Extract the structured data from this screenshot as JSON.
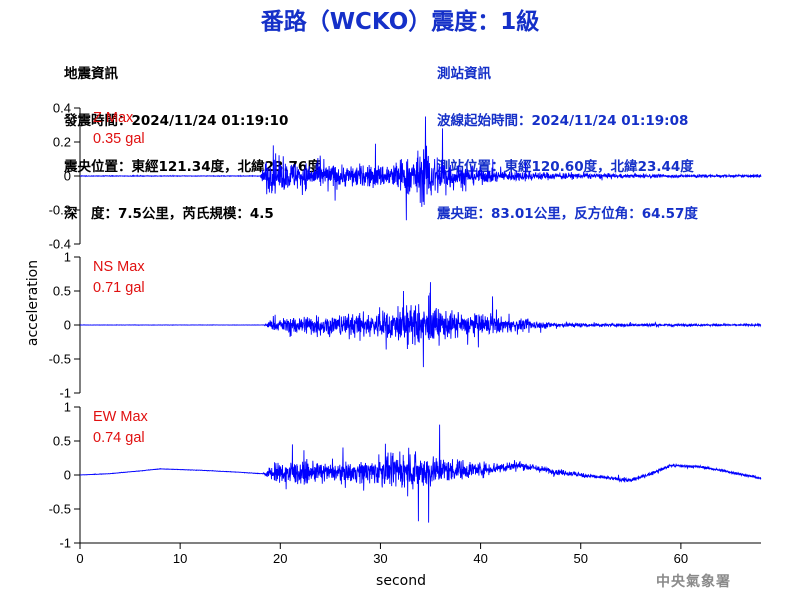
{
  "title": "番路（WCKO）震度：1級",
  "earthquake_info": {
    "heading": "地震資訊",
    "origin_time": "發震時間：2024/11/24 01:19:10",
    "epicenter": "震央位置：東經121.34度，北緯23.76度",
    "depth_magnitude": "深　度：7.5公里，芮氏規模：4.5"
  },
  "station_info": {
    "heading": "測站資訊",
    "wave_start": "波線起始時間：2024/11/24 01:19:08",
    "location": "測站位置：東經120.60度，北緯23.44度",
    "distance": "震央距：83.01公里，反方位角：64.57度"
  },
  "credit": "中央氣象署",
  "colors": {
    "trace": "#0000ff",
    "title": "#1530c8",
    "max_label": "#e01010"
  },
  "chart_data": {
    "type": "line",
    "xlabel": "second",
    "ylabel": "acceleration",
    "xlim": [
      0,
      68
    ],
    "x_ticks": [
      "0",
      "10",
      "20",
      "30",
      "40",
      "50",
      "60"
    ],
    "grid": false,
    "duration_s": 68,
    "onset_s": 18.3,
    "panels": [
      {
        "component": "Z",
        "max_label": "Z Max",
        "max_value": "0.35 gal",
        "ylim": [
          -0.4,
          0.4
        ],
        "y_ticks": [
          "0.4",
          "0.2",
          "0",
          "-0.2",
          "-0.4"
        ],
        "amplitude_envelope": [
          [
            0,
            0.003
          ],
          [
            18,
            0.003
          ],
          [
            18.5,
            0.17
          ],
          [
            22,
            0.14
          ],
          [
            26,
            0.12
          ],
          [
            30,
            0.12
          ],
          [
            33,
            0.2
          ],
          [
            34.5,
            0.3
          ],
          [
            36,
            0.2
          ],
          [
            38,
            0.11
          ],
          [
            42,
            0.06
          ],
          [
            48,
            0.035
          ],
          [
            55,
            0.02
          ],
          [
            68,
            0.012
          ]
        ],
        "peak_samples": [
          [
            19.3,
            0.18
          ],
          [
            29.5,
            0.19
          ],
          [
            34.5,
            0.35
          ],
          [
            36.2,
            0.28
          ],
          [
            32.6,
            -0.26
          ],
          [
            44.5,
            0.08
          ]
        ]
      },
      {
        "component": "NS",
        "max_label": "NS Max",
        "max_value": "0.71 gal",
        "ylim": [
          -1,
          1
        ],
        "y_ticks": [
          "1",
          "0.5",
          "0",
          "-0.5",
          "-1"
        ],
        "amplitude_envelope": [
          [
            0,
            0.004
          ],
          [
            18.3,
            0.004
          ],
          [
            19,
            0.12
          ],
          [
            22,
            0.26
          ],
          [
            26,
            0.28
          ],
          [
            30,
            0.36
          ],
          [
            33,
            0.5
          ],
          [
            35,
            0.5
          ],
          [
            37,
            0.36
          ],
          [
            40,
            0.28
          ],
          [
            43,
            0.18
          ],
          [
            47,
            0.08
          ],
          [
            52,
            0.045
          ],
          [
            68,
            0.02
          ]
        ],
        "peak_samples": [
          [
            35,
            0.63
          ],
          [
            34.3,
            -0.62
          ],
          [
            32.3,
            0.5
          ],
          [
            41.2,
            0.42
          ]
        ]
      },
      {
        "component": "EW",
        "max_label": "EW Max",
        "max_value": "0.74 gal",
        "ylim": [
          -1,
          1
        ],
        "y_ticks": [
          "1",
          "0.5",
          "0",
          "-0.5",
          "-1"
        ],
        "amplitude_envelope": [
          [
            0,
            0.005
          ],
          [
            18.3,
            0.006
          ],
          [
            19,
            0.2
          ],
          [
            21,
            0.32
          ],
          [
            25,
            0.22
          ],
          [
            29,
            0.32
          ],
          [
            32,
            0.42
          ],
          [
            35,
            0.44
          ],
          [
            37,
            0.3
          ],
          [
            40,
            0.2
          ],
          [
            43,
            0.12
          ],
          [
            47,
            0.08
          ],
          [
            52,
            0.05
          ],
          [
            68,
            0.03
          ]
        ],
        "baseline_drift": [
          [
            0,
            0.0
          ],
          [
            3,
            0.02
          ],
          [
            6,
            0.06
          ],
          [
            8,
            0.09
          ],
          [
            12,
            0.07
          ],
          [
            16,
            0.04
          ],
          [
            18,
            0.02
          ],
          [
            40,
            0.08
          ],
          [
            44,
            0.14
          ],
          [
            47,
            0.06
          ],
          [
            50,
            0.0
          ],
          [
            55,
            -0.08
          ],
          [
            57,
            0.02
          ],
          [
            59,
            0.14
          ],
          [
            62,
            0.12
          ],
          [
            65,
            0.04
          ],
          [
            68,
            -0.05
          ]
        ],
        "peak_samples": [
          [
            35.9,
            0.74
          ],
          [
            30.5,
            0.46
          ],
          [
            34.8,
            -0.7
          ],
          [
            33.8,
            -0.68
          ],
          [
            21.2,
            0.45
          ]
        ]
      }
    ]
  }
}
